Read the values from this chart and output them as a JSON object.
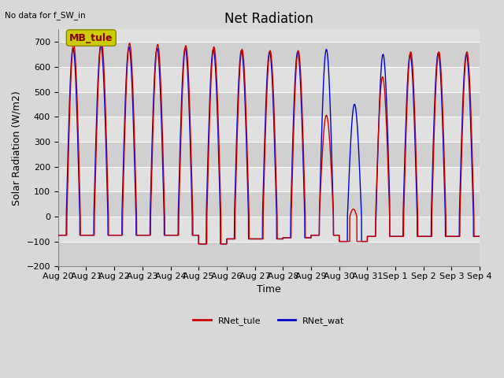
{
  "title": "Net Radiation",
  "subtitle": "No data for f_SW_in",
  "xlabel": "Time",
  "ylabel": "Solar Radiation (W/m2)",
  "ylim": [
    -200,
    750
  ],
  "yticks": [
    -200,
    -100,
    0,
    100,
    200,
    300,
    400,
    500,
    600,
    700
  ],
  "color_tule": "#cc0000",
  "color_wat": "#0000cc",
  "legend_label_tule": "RNet_tule",
  "legend_label_wat": "RNet_wat",
  "annotation_text": "MB_tule",
  "annotation_color": "#cccc00",
  "bg_light": "#d8d8d8",
  "bg_dark": "#c8c8c8",
  "band_color1": "#e8e8e8",
  "band_color2": "#d4d4d4",
  "grid_color": "#ffffff",
  "n_days": 15,
  "day_labels": [
    "Aug 20",
    "Aug 21",
    "Aug 22",
    "Aug 23",
    "Aug 24",
    "Aug 25",
    "Aug 26",
    "Aug 27",
    "Aug 28",
    "Aug 29",
    "Aug 30",
    "Aug 31",
    "Sep 1",
    "Sep 2",
    "Sep 3",
    "Sep 4"
  ],
  "title_fontsize": 12,
  "label_fontsize": 9,
  "tick_fontsize": 8
}
